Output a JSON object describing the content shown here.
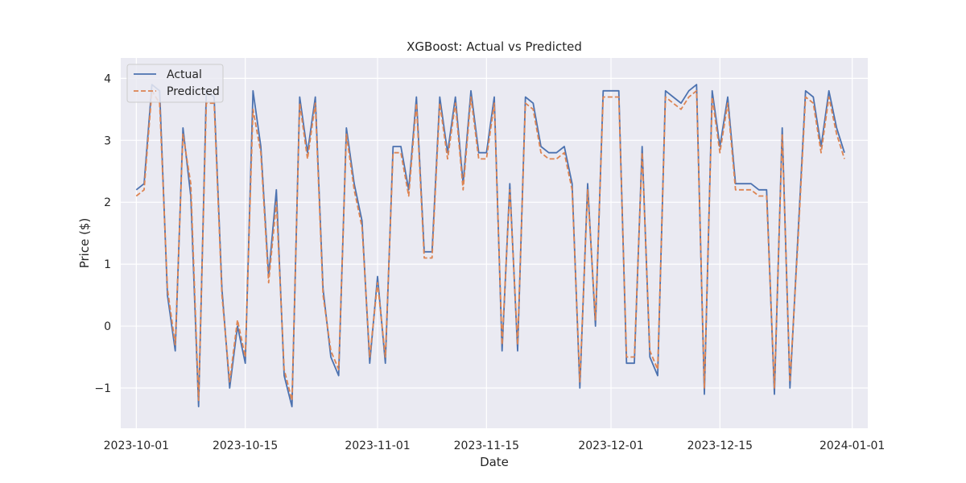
{
  "chart_data": {
    "type": "line",
    "title": "XGBoost: Actual vs Predicted",
    "xlabel": "Date",
    "ylabel": "Price ($)",
    "x_tick_labels": [
      "2023-10-01",
      "2023-10-15",
      "2023-11-01",
      "2023-11-15",
      "2023-12-01",
      "2023-12-15",
      "2024-01-01"
    ],
    "y_tick_labels": [
      "−1",
      "0",
      "1",
      "2",
      "3",
      "4"
    ],
    "xlim": [
      "2023-09-29",
      "2024-01-03"
    ],
    "ylim": [
      -1.65,
      4.33
    ],
    "grid": true,
    "legend": "top-left",
    "x": [
      "2023-10-01",
      "2023-10-02",
      "2023-10-03",
      "2023-10-04",
      "2023-10-05",
      "2023-10-06",
      "2023-10-07",
      "2023-10-08",
      "2023-10-09",
      "2023-10-10",
      "2023-10-11",
      "2023-10-12",
      "2023-10-13",
      "2023-10-14",
      "2023-10-15",
      "2023-10-16",
      "2023-10-17",
      "2023-10-18",
      "2023-10-19",
      "2023-10-20",
      "2023-10-21",
      "2023-10-22",
      "2023-10-23",
      "2023-10-24",
      "2023-10-25",
      "2023-10-26",
      "2023-10-27",
      "2023-10-28",
      "2023-10-29",
      "2023-10-30",
      "2023-10-31",
      "2023-11-01",
      "2023-11-02",
      "2023-11-03",
      "2023-11-04",
      "2023-11-05",
      "2023-11-06",
      "2023-11-07",
      "2023-11-08",
      "2023-11-09",
      "2023-11-10",
      "2023-11-11",
      "2023-11-12",
      "2023-11-13",
      "2023-11-14",
      "2023-11-15",
      "2023-11-16",
      "2023-11-17",
      "2023-11-18",
      "2023-11-19",
      "2023-11-20",
      "2023-11-21",
      "2023-11-22",
      "2023-11-23",
      "2023-11-24",
      "2023-11-25",
      "2023-11-26",
      "2023-11-27",
      "2023-11-28",
      "2023-11-29",
      "2023-11-30",
      "2023-12-01",
      "2023-12-02",
      "2023-12-03",
      "2023-12-04",
      "2023-12-05",
      "2023-12-06",
      "2023-12-07",
      "2023-12-08",
      "2023-12-09",
      "2023-12-10",
      "2023-12-11",
      "2023-12-12",
      "2023-12-13",
      "2023-12-14",
      "2023-12-15",
      "2023-12-16",
      "2023-12-17",
      "2023-12-18",
      "2023-12-19",
      "2023-12-20",
      "2023-12-21",
      "2023-12-22",
      "2023-12-23",
      "2023-12-24",
      "2023-12-25",
      "2023-12-26",
      "2023-12-27",
      "2023-12-28",
      "2023-12-29",
      "2023-12-30",
      "2023-12-31"
    ],
    "series": [
      {
        "name": "Actual",
        "color": "#4c72b0",
        "dash": "solid",
        "values": [
          2.2,
          2.3,
          3.9,
          3.8,
          0.5,
          -0.4,
          3.2,
          2.1,
          -1.3,
          3.8,
          3.7,
          0.6,
          -1.0,
          0.0,
          -0.6,
          3.8,
          2.9,
          0.8,
          2.2,
          -0.8,
          -1.3,
          3.7,
          2.8,
          3.7,
          0.6,
          -0.5,
          -0.8,
          3.2,
          2.3,
          1.7,
          -0.6,
          0.8,
          -0.6,
          2.9,
          2.9,
          2.2,
          3.7,
          1.2,
          1.2,
          3.7,
          2.8,
          3.7,
          2.3,
          3.8,
          2.8,
          2.8,
          3.7,
          -0.4,
          2.3,
          -0.4,
          3.7,
          3.6,
          2.9,
          2.8,
          2.8,
          2.9,
          2.3,
          -1.0,
          2.3,
          0.0,
          3.8,
          3.8,
          3.8,
          -0.6,
          -0.6,
          2.9,
          -0.5,
          -0.8,
          3.8,
          3.7,
          3.6,
          3.8,
          3.9,
          -1.1,
          3.8,
          2.9,
          3.7,
          2.3,
          2.3,
          2.3,
          2.2,
          2.2,
          -1.1,
          3.2,
          -1.0,
          1.4,
          3.8,
          3.7,
          2.9,
          3.8,
          3.2,
          2.8
        ]
      },
      {
        "name": "Predicted",
        "color": "#dd8452",
        "dash": "dashed",
        "values": [
          2.1,
          2.2,
          3.8,
          3.6,
          0.6,
          -0.3,
          3.1,
          2.3,
          -1.2,
          3.6,
          3.6,
          0.5,
          -0.9,
          0.1,
          -0.5,
          3.5,
          2.8,
          0.7,
          2.0,
          -0.7,
          -1.2,
          3.6,
          2.7,
          3.6,
          0.5,
          -0.4,
          -0.7,
          3.1,
          2.2,
          1.6,
          -0.5,
          0.7,
          -0.5,
          2.8,
          2.8,
          2.1,
          3.6,
          1.1,
          1.1,
          3.6,
          2.7,
          3.6,
          2.2,
          3.7,
          2.7,
          2.7,
          3.6,
          -0.3,
          2.2,
          -0.3,
          3.6,
          3.5,
          2.8,
          2.7,
          2.7,
          2.8,
          2.2,
          -0.9,
          2.2,
          0.1,
          3.7,
          3.7,
          3.7,
          -0.5,
          -0.5,
          2.8,
          -0.4,
          -0.7,
          3.7,
          3.6,
          3.5,
          3.7,
          3.8,
          -1.0,
          3.7,
          2.8,
          3.6,
          2.2,
          2.2,
          2.2,
          2.1,
          2.1,
          -1.0,
          3.1,
          -0.9,
          1.3,
          3.7,
          3.6,
          2.8,
          3.7,
          3.1,
          2.7
        ]
      }
    ]
  }
}
